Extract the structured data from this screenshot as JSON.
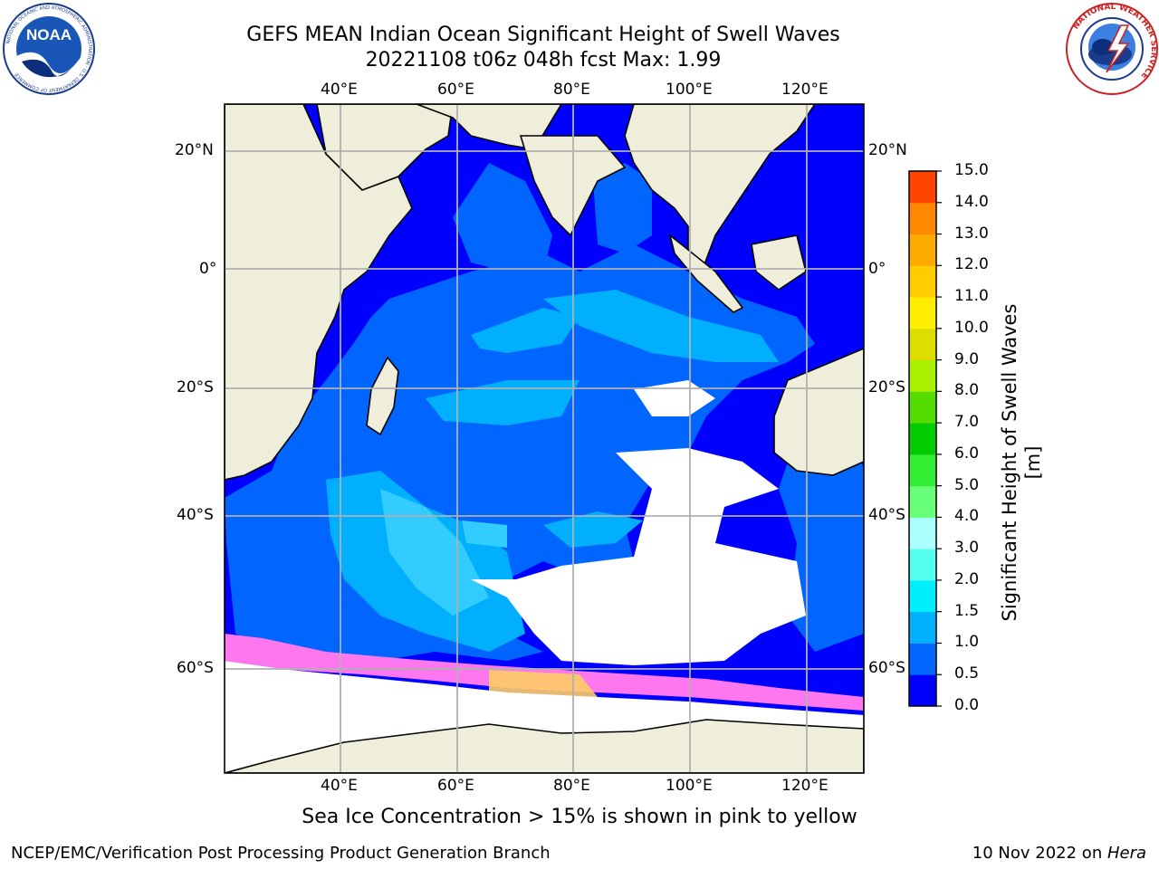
{
  "title": {
    "line1": "GEFS MEAN Indian Ocean Significant Height of Swell Waves",
    "line2": "20221108 t06z 048h fcst   Max: 1.99"
  },
  "logos": {
    "left": {
      "name": "noaa-logo",
      "text": "NOAA",
      "ring_text": "NATIONAL OCEANIC AND ATMOSPHERIC ADMINISTRATION · U.S. DEPARTMENT OF COMMERCE"
    },
    "right": {
      "name": "nws-logo",
      "ring_text": "NATIONAL WEATHER SERVICE"
    }
  },
  "map": {
    "projection": "cylindrical",
    "lon_range": [
      20,
      129
    ],
    "lat_range": [
      -72,
      27
    ],
    "lon_ticks": [
      "40°E",
      "60°E",
      "80°E",
      "100°E",
      "120°E"
    ],
    "lat_ticks": [
      "20°N",
      "0°",
      "20°S",
      "40°S",
      "60°S"
    ],
    "grid": true,
    "colors": {
      "land": "#efeedb",
      "no_data": "#ffffff",
      "sea_ice_low": "#ff66ff",
      "sea_ice_high": "#ffdd44"
    }
  },
  "colorbar": {
    "label": "Significant Height of Swell Waves [m]",
    "ticks": [
      "0.0",
      "0.5",
      "1.0",
      "1.5",
      "2.0",
      "3.0",
      "4.0",
      "5.0",
      "6.0",
      "7.0",
      "8.0",
      "9.0",
      "10.0",
      "11.0",
      "12.0",
      "13.0",
      "14.0",
      "15.0"
    ],
    "colors": [
      "#0000ff",
      "#0066ff",
      "#00b0ff",
      "#00eeff",
      "#55ffee",
      "#aaffff",
      "#66ff77",
      "#33ee33",
      "#00cc00",
      "#55dd00",
      "#aaee00",
      "#dddd00",
      "#ffee00",
      "#ffcc00",
      "#ffaa00",
      "#ff8800",
      "#ff4400",
      "#ff0000"
    ]
  },
  "caption": "Sea Ice Concentration > 15% is shown in pink to yellow",
  "footer": {
    "left": "NCEP/EMC/Verification Post Processing Product Generation Branch",
    "right_date": "10 Nov 2022 on ",
    "right_host": "Hera"
  }
}
